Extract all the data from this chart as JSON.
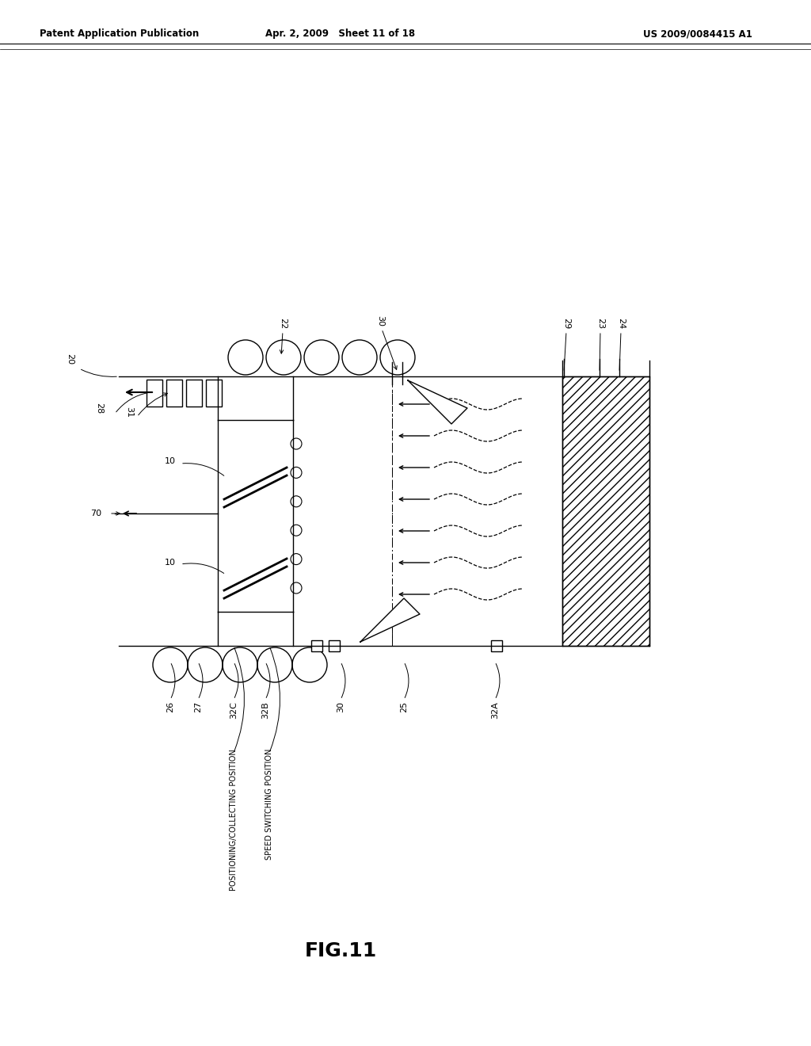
{
  "title_left": "Patent Application Publication",
  "title_center": "Apr. 2, 2009  Sheet 11 of 18",
  "title_right": "US 2009/0084415 A1",
  "fig_label": "FIG.11",
  "bg_color": "#ffffff",
  "line_color": "#000000"
}
